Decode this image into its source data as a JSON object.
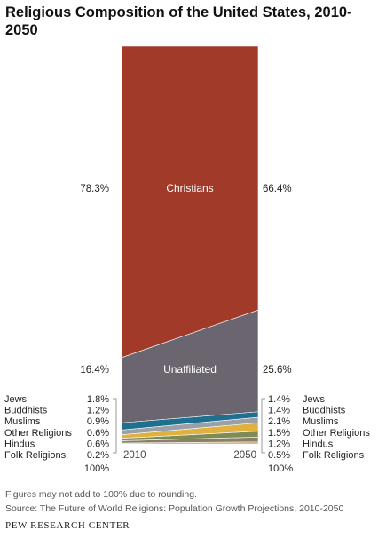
{
  "chart_data": {
    "type": "area",
    "title": "Religious Composition of the United States, 2010-2050",
    "x": [
      "2010",
      "2050"
    ],
    "series": [
      {
        "name": "Folk Religions",
        "values": [
          0.2,
          0.5
        ],
        "color": "#c9a36a"
      },
      {
        "name": "Hindus",
        "values": [
          0.6,
          1.2
        ],
        "color": "#8a8067"
      },
      {
        "name": "Other Religions",
        "values": [
          0.6,
          1.5
        ],
        "color": "#7f8b54"
      },
      {
        "name": "Muslims",
        "values": [
          0.9,
          2.1
        ],
        "color": "#e0b041"
      },
      {
        "name": "Buddhists",
        "values": [
          1.2,
          1.4
        ],
        "color": "#9aa0a8"
      },
      {
        "name": "Jews",
        "values": [
          1.8,
          1.4
        ],
        "color": "#1f6f8f"
      },
      {
        "name": "Unaffiliated",
        "values": [
          16.4,
          25.6
        ],
        "color": "#6b6570"
      },
      {
        "name": "Christians",
        "values": [
          78.3,
          66.4
        ],
        "color": "#a23a2a"
      }
    ],
    "left_labels": [
      "78.3%",
      "16.4%",
      "1.8%",
      "1.2%",
      "0.9%",
      "0.6%",
      "0.6%",
      "0.2%"
    ],
    "right_labels": [
      "66.4%",
      "25.6%",
      "1.4%",
      "1.4%",
      "2.1%",
      "1.5%",
      "1.2%",
      "0.5%"
    ],
    "total_label": "100%"
  },
  "footer": {
    "note": "Figures may not add to 100% due to rounding.",
    "source": "Source: The Future of World Religions: Population Growth Projections, 2010-2050",
    "brand": "PEW RESEARCH CENTER"
  }
}
